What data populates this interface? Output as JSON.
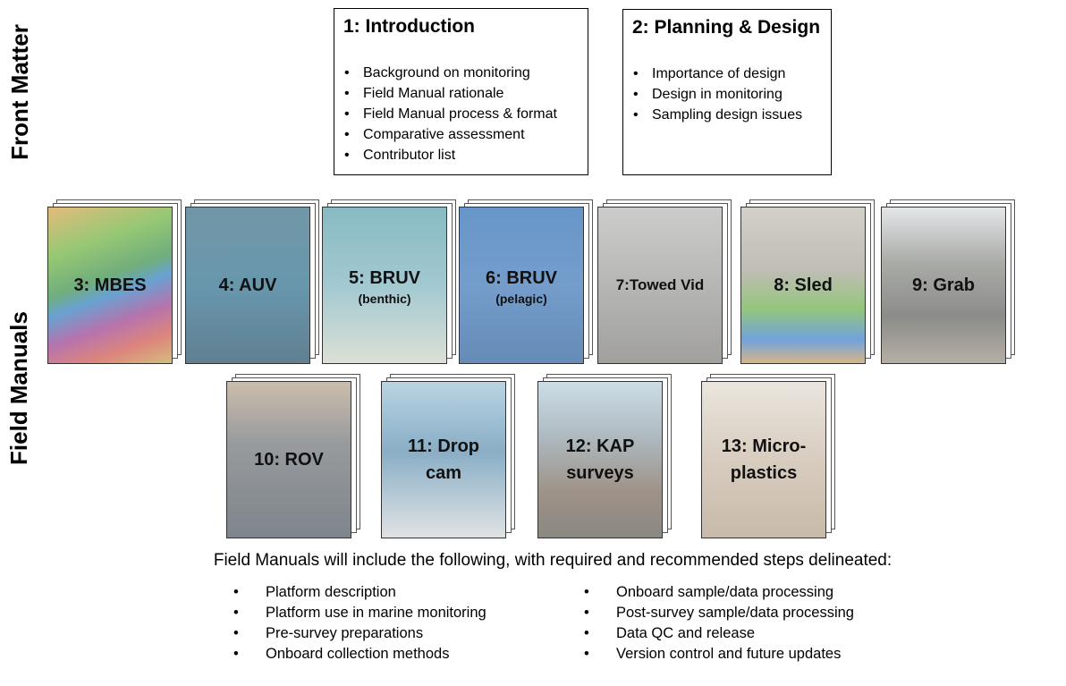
{
  "side_labels": {
    "front_matter": "Front Matter",
    "field_manuals": "Field Manuals"
  },
  "intro_box": {
    "title": "1: Introduction",
    "items": [
      "Background on monitoring",
      "Field Manual rationale",
      "Field Manual process & format",
      "Comparative assessment",
      "Contributor list"
    ]
  },
  "planning_box": {
    "title": "2: Planning & Design",
    "items": [
      "Importance of design",
      "Design in monitoring",
      "Sampling design issues"
    ]
  },
  "manuals": [
    {
      "title": "3: MBES",
      "subtitle": ""
    },
    {
      "title": "4: AUV",
      "subtitle": ""
    },
    {
      "title": "5: BRUV",
      "subtitle": "(benthic)"
    },
    {
      "title": "6: BRUV",
      "subtitle": "(pelagic)"
    },
    {
      "title": "7:Towed Vid",
      "subtitle": ""
    },
    {
      "title": "8: Sled",
      "subtitle": ""
    },
    {
      "title": "9: Grab",
      "subtitle": ""
    },
    {
      "title": "10: ROV",
      "subtitle": ""
    },
    {
      "title": "11: Drop cam",
      "subtitle": ""
    },
    {
      "title": "12: KAP surveys",
      "subtitle": ""
    },
    {
      "title": "13: Micro-plastics",
      "subtitle": ""
    }
  ],
  "footer": {
    "title": "Field Manuals will include the following, with required and recommended steps delineated:",
    "left_items": [
      "Platform description",
      "Platform use in marine monitoring",
      "Pre-survey preparations",
      "Onboard collection methods"
    ],
    "right_items": [
      "Onboard sample/data processing",
      "Post-survey sample/data processing",
      "Data QC and release",
      "Version control and future updates"
    ]
  },
  "cover_colors": {
    "mbes": "#3a8f4a",
    "auv": "#2e6f8e",
    "bruv_benthic": "#7fb4bf",
    "bruv_pelagic": "#3f78b8",
    "towed": "#9a9a98",
    "sled": "#a8a49a",
    "grab": "#8a8c86",
    "rov": "#6f7478",
    "dropcam": "#5d8fb0",
    "kap": "#8fa0a8",
    "micro": "#c9b9a6"
  }
}
